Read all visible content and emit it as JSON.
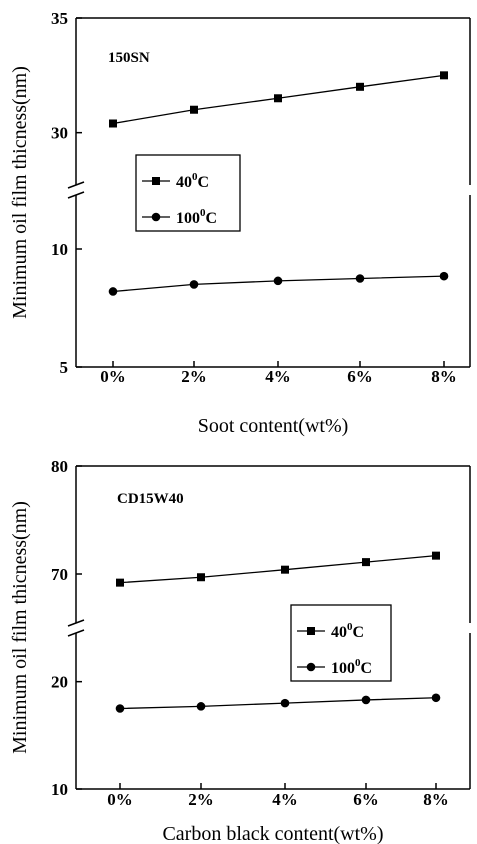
{
  "chart_data": [
    {
      "type": "line",
      "title": "150SN",
      "xlabel": "Soot content(wt%)",
      "ylabel": "Minimum oil film thicness(nm)",
      "categories": [
        "0%",
        "2%",
        "4%",
        "6%",
        "8%"
      ],
      "axis_break": true,
      "ylim_upper": [
        27.5,
        35
      ],
      "ylim_lower": [
        5,
        12.5
      ],
      "yticks_upper": [
        "30",
        "35"
      ],
      "yticks_lower": [
        "5",
        "10"
      ],
      "legend_position": "center-left",
      "series": [
        {
          "name": "40",
          "unit_sup": "0",
          "unit": "C",
          "marker": "square",
          "values": [
            30.4,
            31.0,
            31.5,
            32.0,
            32.5
          ]
        },
        {
          "name": "100",
          "unit_sup": "0",
          "unit": "C",
          "marker": "circle",
          "values": [
            8.2,
            8.5,
            8.65,
            8.75,
            8.85
          ]
        }
      ]
    },
    {
      "type": "line",
      "title": "CD15W40",
      "xlabel": "Carbon black content(wt%)",
      "ylabel": "Minimum oil film thicness(nm)",
      "categories": [
        "0%",
        "2%",
        "4%",
        "6%",
        "8%"
      ],
      "axis_break": true,
      "ylim_upper": [
        65,
        80
      ],
      "ylim_lower": [
        10,
        25
      ],
      "yticks_upper": [
        "70",
        "80"
      ],
      "yticks_lower": [
        "10",
        "20"
      ],
      "legend_position": "right",
      "series": [
        {
          "name": "40",
          "unit_sup": "0",
          "unit": "C",
          "marker": "square",
          "values": [
            69.2,
            69.7,
            70.4,
            71.1,
            71.7
          ]
        },
        {
          "name": "100",
          "unit_sup": "0",
          "unit": "C",
          "marker": "circle",
          "values": [
            17.5,
            17.7,
            18.0,
            18.3,
            18.5
          ]
        }
      ]
    }
  ]
}
